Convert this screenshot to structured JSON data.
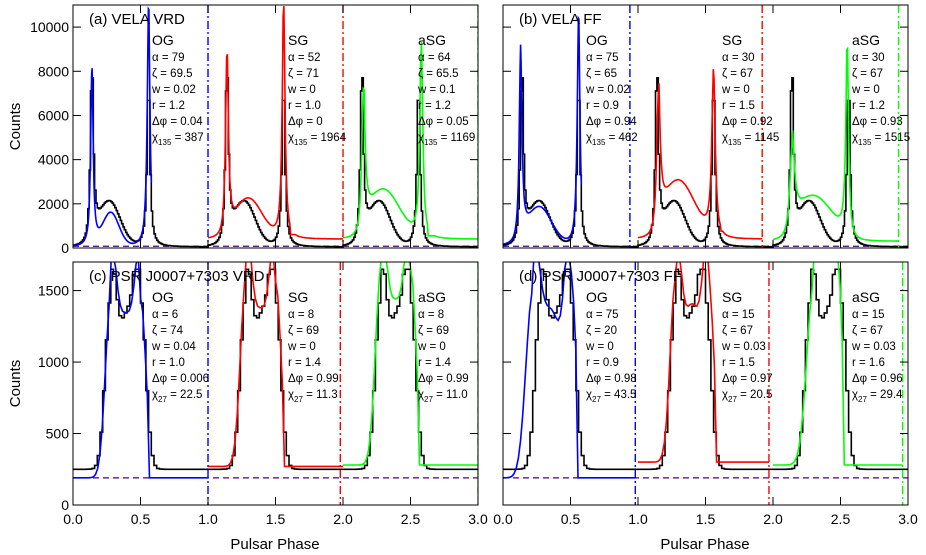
{
  "figure": {
    "x_axis_title": "Pulsar Phase",
    "y_axis_title": "Counts"
  },
  "chart_data": [
    {
      "type": "line",
      "panel": "a",
      "title": "(a) VELA VRD",
      "xlim": [
        0,
        3
      ],
      "ylim": [
        0,
        11000
      ],
      "yticks": [
        0,
        2000,
        4000,
        6000,
        8000,
        10000
      ],
      "xticks": [],
      "xlabel": "",
      "ylabel": "Counts",
      "background_level": 80,
      "gap_boundaries": [
        1.0,
        2.0,
        3.0
      ],
      "models": [
        {
          "name": "OG",
          "color": "#0000ff",
          "params": [
            "α = 79",
            "ζ = 69.5",
            "w = 0.02",
            "r = 1.2",
            "Δφ = 0.04"
          ],
          "chi_label": "χ",
          "chi_sub": "135",
          "chi_value": "387",
          "boundary_offset": 0.0,
          "boundary_side": "left"
        },
        {
          "name": "SG",
          "color": "#ff0000",
          "params": [
            "α = 52",
            "ζ = 71",
            "w = 0",
            "r = 1.0",
            "Δφ = 0"
          ],
          "chi_label": "χ",
          "chi_sub": "135",
          "chi_value": "1964",
          "boundary_offset": 0.0,
          "boundary_side": "left"
        },
        {
          "name": "aSG",
          "color": "#00ff00",
          "params": [
            "α = 64",
            "ζ = 65.5",
            "w = 0.1",
            "r = 1.2",
            "Δφ = 0.05"
          ],
          "chi_label": "χ",
          "chi_sub": "135",
          "chi_value": "1169",
          "boundary_offset": 0.0,
          "boundary_side": "left"
        }
      ],
      "profile": {
        "peaks": [
          {
            "phase": 0.14,
            "height": 8100,
            "width": 0.013
          },
          {
            "phase": 0.56,
            "height": 7600,
            "width": 0.013
          }
        ],
        "bridge": {
          "phase": 0.27,
          "height": 2000,
          "width": 0.08
        },
        "base": 50
      },
      "model_curves": [
        {
          "peaks": [
            {
              "phase": 0.14,
              "height": 8100,
              "width": 0.011
            },
            {
              "phase": 0.56,
              "height": 11000,
              "width": 0.012
            }
          ],
          "bridge": {
            "phase": 0.28,
            "height": 1500,
            "width": 0.06
          },
          "plateau": 500,
          "base": 50,
          "end": 0.58
        },
        {
          "peaks": [
            {
              "phase": 0.14,
              "height": 8600,
              "width": 0.012
            },
            {
              "phase": 0.56,
              "height": 11000,
              "width": 0.012
            }
          ],
          "bridge": {
            "phase": 0.3,
            "height": 1800,
            "width": 0.1
          },
          "plateau": 700,
          "base": 400,
          "end": 1.0
        },
        {
          "peaks": [
            {
              "phase": 0.15,
              "height": 6800,
              "width": 0.014
            },
            {
              "phase": 0.58,
              "height": 9000,
              "width": 0.013
            }
          ],
          "bridge": {
            "phase": 0.3,
            "height": 2200,
            "width": 0.12
          },
          "plateau": 500,
          "base": 400,
          "end": 1.0
        }
      ]
    },
    {
      "type": "line",
      "panel": "b",
      "title": "(b) VELA FF",
      "xlim": [
        0,
        3
      ],
      "ylim": [
        0,
        11000
      ],
      "yticks": [
        0,
        2000,
        4000,
        6000,
        8000,
        10000
      ],
      "xticks": [],
      "xlabel": "",
      "ylabel": "",
      "background_level": 80,
      "gap_boundaries": [
        0.94,
        1.92,
        2.93
      ],
      "models": [
        {
          "name": "OG",
          "color": "#0000ff",
          "params": [
            "α = 75",
            "ζ = 65",
            "w = 0.02",
            "r = 0.9",
            "Δφ = 0.94"
          ],
          "chi_label": "χ",
          "chi_sub": "135",
          "chi_value": "462",
          "boundary_offset": 0.94,
          "boundary_side": "left"
        },
        {
          "name": "SG",
          "color": "#ff0000",
          "params": [
            "α = 30",
            "ζ = 67",
            "w = 0",
            "r = 1.5",
            "Δφ = 0.92"
          ],
          "chi_label": "χ",
          "chi_sub": "135",
          "chi_value": "1145",
          "boundary_offset": 0.92,
          "boundary_side": "left"
        },
        {
          "name": "aSG",
          "color": "#00ff00",
          "params": [
            "α = 30",
            "ζ = 67",
            "w = 0",
            "r = 1.2",
            "Δφ = 0.93"
          ],
          "chi_label": "χ",
          "chi_sub": "135",
          "chi_value": "1515",
          "boundary_offset": 0.93,
          "boundary_side": "left"
        }
      ],
      "profile": {
        "peaks": [
          {
            "phase": 0.14,
            "height": 8100,
            "width": 0.013
          },
          {
            "phase": 0.56,
            "height": 7600,
            "width": 0.013
          }
        ],
        "bridge": {
          "phase": 0.27,
          "height": 2000,
          "width": 0.08
        },
        "base": 50
      },
      "model_curves": [
        {
          "peaks": [
            {
              "phase": 0.13,
              "height": 8600,
              "width": 0.012
            },
            {
              "phase": 0.56,
              "height": 10500,
              "width": 0.012
            }
          ],
          "bridge": {
            "phase": 0.27,
            "height": 1700,
            "width": 0.09
          },
          "plateau": 1200,
          "base": 100,
          "end": 0.58
        },
        {
          "peaks": [
            {
              "phase": 0.15,
              "height": 6500,
              "width": 0.015
            },
            {
              "phase": 0.56,
              "height": 7600,
              "width": 0.015
            }
          ],
          "bridge": {
            "phase": 0.3,
            "height": 2600,
            "width": 0.12
          },
          "plateau": 1200,
          "base": 400,
          "end": 0.92
        },
        {
          "peaks": [
            {
              "phase": 0.14,
              "height": 4200,
              "width": 0.02
            },
            {
              "phase": 0.55,
              "height": 9000,
              "width": 0.012
            }
          ],
          "bridge": {
            "phase": 0.3,
            "height": 2000,
            "width": 0.14
          },
          "plateau": 1600,
          "base": 300,
          "end": 0.93
        }
      ]
    },
    {
      "type": "line",
      "panel": "c",
      "title": "(c) PSR J0007+7303 VRD",
      "xlim": [
        0,
        3
      ],
      "ylim": [
        0,
        1700
      ],
      "yticks": [
        0,
        500,
        1000,
        1500
      ],
      "xticks": [
        0.0,
        0.5,
        1.0,
        1.5,
        2.0,
        2.5,
        3.0
      ],
      "xtick_labels": [
        "0.0",
        "0.5",
        "1.0",
        "1.5",
        "2.0",
        "2.5",
        "3.0"
      ],
      "xlabel": "Pulsar Phase",
      "ylabel": "Counts",
      "background_level": 190,
      "gap_boundaries": [
        1.0,
        1.98,
        3.0
      ],
      "models": [
        {
          "name": "OG",
          "color": "#0000ff",
          "params": [
            "α = 6",
            "ζ = 74",
            "w = 0.04",
            "r = 1.0",
            "Δφ = 0.006"
          ],
          "chi_label": "χ",
          "chi_sub": "27",
          "chi_value": "22.5",
          "boundary_offset": 0.0,
          "boundary_side": "left"
        },
        {
          "name": "SG",
          "color": "#ff0000",
          "params": [
            "α = 8",
            "ζ = 69",
            "w = 0",
            "r = 1.4",
            "Δφ = 0.99"
          ],
          "chi_label": "χ",
          "chi_sub": "27",
          "chi_value": "11.3",
          "boundary_offset": 0.99,
          "boundary_side": "left"
        },
        {
          "name": "aSG",
          "color": "#00ff00",
          "params": [
            "α = 8",
            "ζ = 69",
            "w = 0",
            "r = 1.4",
            "Δφ = 0.99"
          ],
          "chi_label": "χ",
          "chi_sub": "27",
          "chi_value": "11.0",
          "boundary_offset": 0.99,
          "boundary_side": "left"
        }
      ],
      "profile": {
        "peaks": [
          {
            "phase": 0.28,
            "height": 1200,
            "width": 0.04
          },
          {
            "phase": 0.5,
            "height": 1200,
            "width": 0.04
          }
        ],
        "bridge": {
          "phase": 0.4,
          "height": 1050,
          "width": 0.07
        },
        "base": 250
      },
      "model_curves": [
        {
          "peaks": [
            {
              "phase": 0.28,
              "height": 1260,
              "width": 0.04
            },
            {
              "phase": 0.5,
              "height": 1260,
              "width": 0.04
            }
          ],
          "bridge": {
            "phase": 0.39,
            "height": 1100,
            "width": 0.07
          },
          "plateau": 0,
          "base": 190,
          "end": 1.0
        },
        {
          "peaks": [
            {
              "phase": 0.28,
              "height": 1300,
              "width": 0.04
            },
            {
              "phase": 0.5,
              "height": 1300,
              "width": 0.04
            }
          ],
          "bridge": {
            "phase": 0.39,
            "height": 1050,
            "width": 0.07
          },
          "plateau": 0,
          "base": 270,
          "end": 1.0
        },
        {
          "peaks": [
            {
              "phase": 0.28,
              "height": 1350,
              "width": 0.04
            },
            {
              "phase": 0.5,
              "height": 1380,
              "width": 0.04
            }
          ],
          "bridge": {
            "phase": 0.39,
            "height": 1100,
            "width": 0.07
          },
          "plateau": 0,
          "base": 280,
          "end": 1.0
        }
      ]
    },
    {
      "type": "line",
      "panel": "d",
      "title": "(d) PSR J0007+7303 FF",
      "xlim": [
        0,
        3
      ],
      "ylim": [
        0,
        1700
      ],
      "yticks": [
        0,
        500,
        1000,
        1500
      ],
      "xticks": [
        0.0,
        0.5,
        1.0,
        1.5,
        2.0,
        2.5,
        3.0
      ],
      "xtick_labels": [
        "0.0",
        "0.5",
        "1.0",
        "1.5",
        "2.0",
        "2.5",
        "3.0"
      ],
      "xlabel": "Pulsar Phase",
      "ylabel": "",
      "background_level": 190,
      "gap_boundaries": [
        0.98,
        1.97,
        2.96
      ],
      "models": [
        {
          "name": "OG",
          "color": "#0000ff",
          "params": [
            "α = 75",
            "ζ = 20",
            "w = 0",
            "r = 0.9",
            "Δφ = 0.98"
          ],
          "chi_label": "χ",
          "chi_sub": "27",
          "chi_value": "43.5",
          "boundary_offset": 0.98,
          "boundary_side": "left"
        },
        {
          "name": "SG",
          "color": "#ff0000",
          "params": [
            "α = 15",
            "ζ = 67",
            "w = 0.03",
            "r = 1.5",
            "Δφ = 0.97"
          ],
          "chi_label": "χ",
          "chi_sub": "27",
          "chi_value": "20.5",
          "boundary_offset": 0.97,
          "boundary_side": "left"
        },
        {
          "name": "aSG",
          "color": "#00ff00",
          "params": [
            "α = 15",
            "ζ = 67",
            "w = 0.03",
            "r = 1.6",
            "Δφ = 0.96"
          ],
          "chi_label": "χ",
          "chi_sub": "27",
          "chi_value": "29.4",
          "boundary_offset": 0.96,
          "boundary_side": "left"
        }
      ],
      "profile": {
        "peaks": [
          {
            "phase": 0.28,
            "height": 1200,
            "width": 0.04
          },
          {
            "phase": 0.5,
            "height": 1200,
            "width": 0.04
          }
        ],
        "bridge": {
          "phase": 0.4,
          "height": 1050,
          "width": 0.07
        },
        "base": 250
      },
      "model_curves": [
        {
          "peaks": [
            {
              "phase": 0.22,
              "height": 1300,
              "width": 0.05
            },
            {
              "phase": 0.5,
              "height": 1450,
              "width": 0.04
            }
          ],
          "bridge": {
            "phase": 0.36,
            "height": 1150,
            "width": 0.09
          },
          "plateau": 0,
          "base": 190,
          "end": 0.98
        },
        {
          "peaks": [
            {
              "phase": 0.28,
              "height": 1300,
              "width": 0.04
            },
            {
              "phase": 0.52,
              "height": 1300,
              "width": 0.04
            }
          ],
          "bridge": {
            "phase": 0.4,
            "height": 1080,
            "width": 0.07
          },
          "plateau": 0,
          "base": 300,
          "end": 0.97
        },
        {
          "peaks": [
            {
              "phase": 0.3,
              "height": 1250,
              "width": 0.05
            },
            {
              "phase": 0.47,
              "height": 1550,
              "width": 0.04
            }
          ],
          "bridge": {
            "phase": 0.39,
            "height": 1100,
            "width": 0.08
          },
          "plateau": 0,
          "base": 280,
          "end": 0.96
        }
      ]
    }
  ]
}
